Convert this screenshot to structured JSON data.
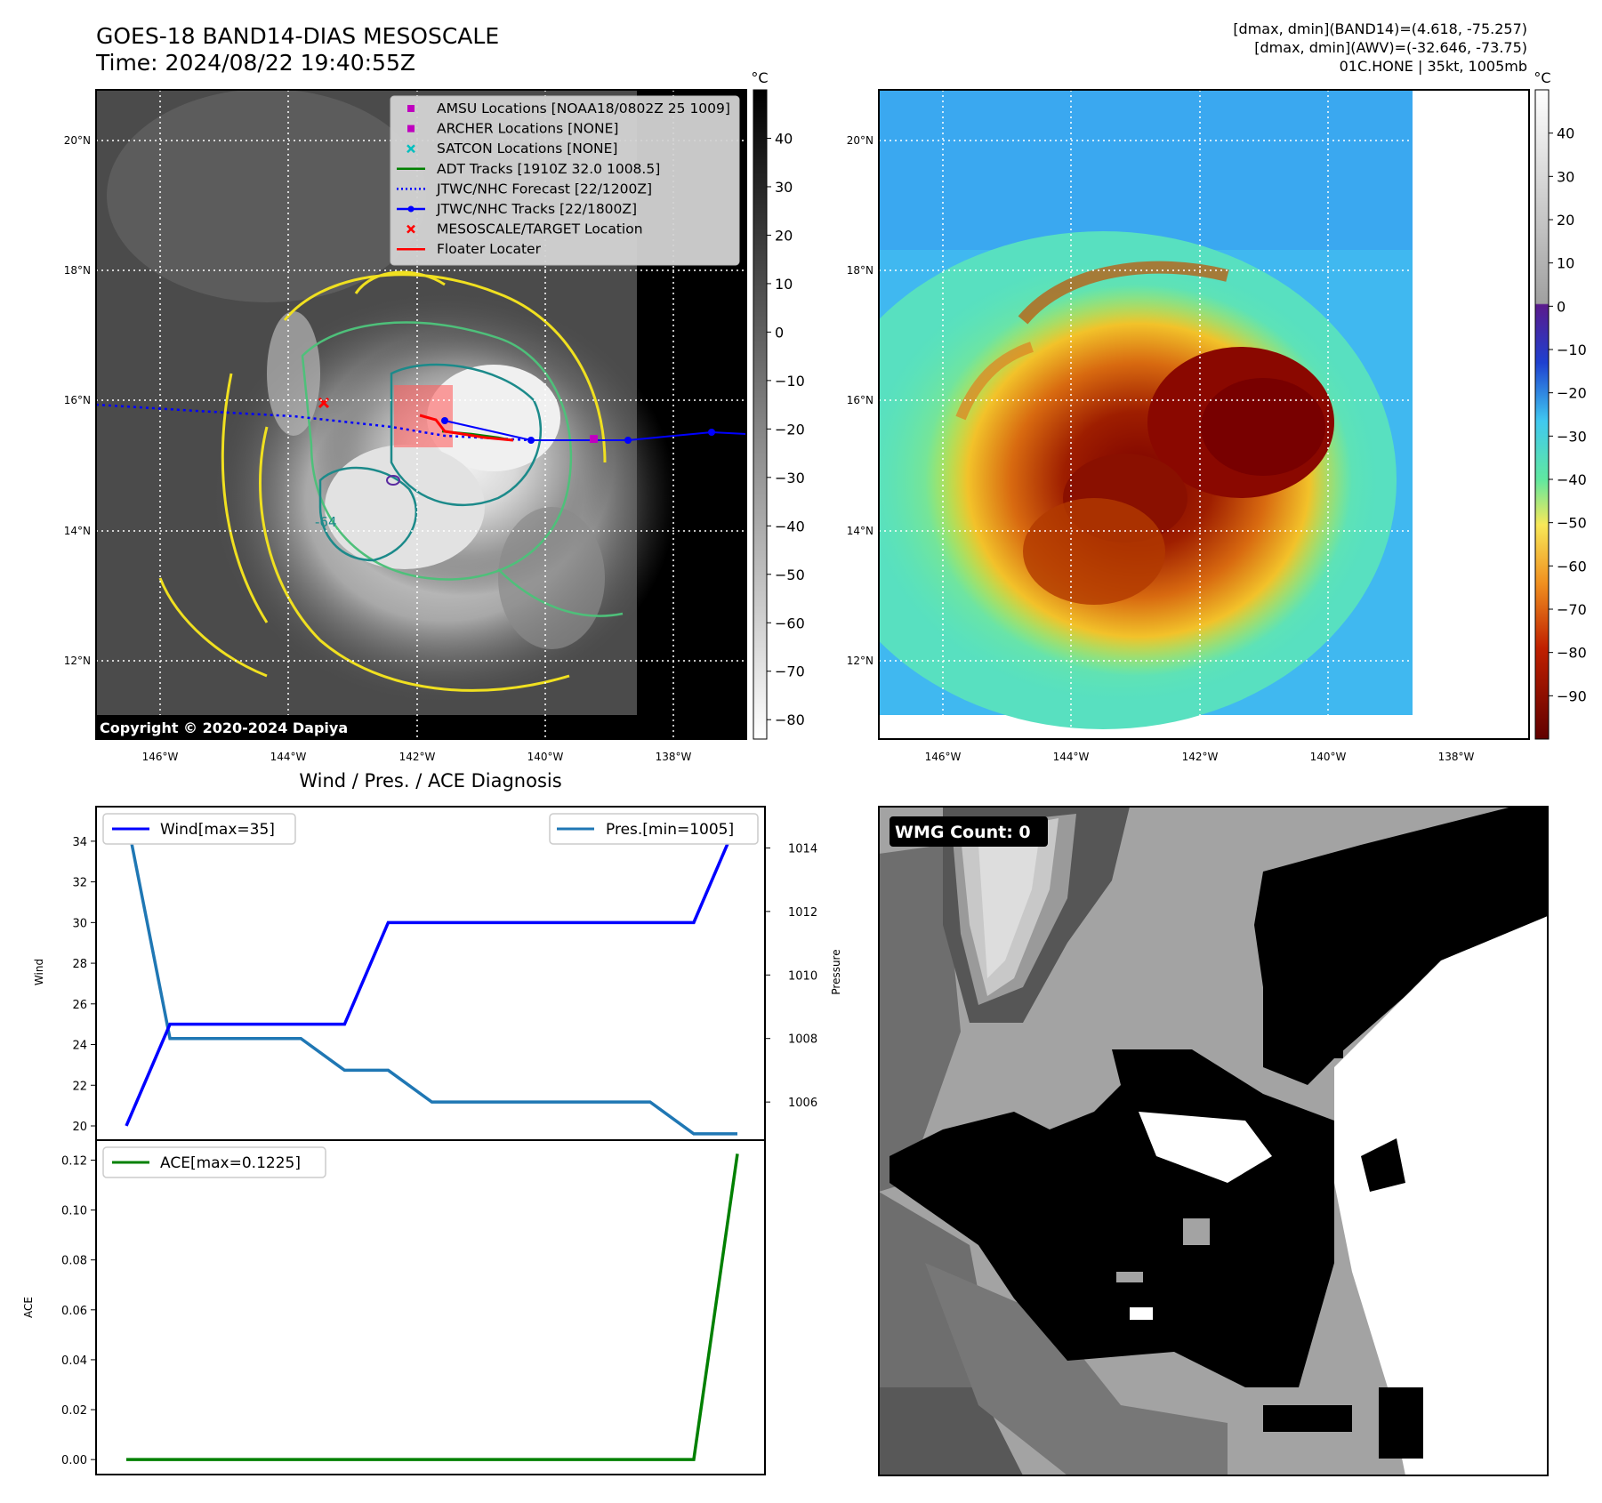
{
  "header": {
    "title_line1": "GOES-18 BAND14-DIAS MESOSCALE",
    "title_line2": "Time: 2024/08/22 19:40:55Z",
    "stats_line1": "[dmax, dmin](BAND14)=(4.618, -75.257)",
    "stats_line2": "[dmax, dmin](AWV)=(-32.646, -73.75)",
    "stats_line3": "01C.HONE | 35kt, 1005mb"
  },
  "maps": {
    "lon_ticks": [
      "146°W",
      "144°W",
      "142°W",
      "140°W",
      "138°W"
    ],
    "lat_ticks": [
      "20°N",
      "18°N",
      "16°N",
      "14°N",
      "12°N"
    ],
    "colorbar_unit": "°C",
    "ir_colorbar_ticks": [
      "40",
      "30",
      "20",
      "10",
      "0",
      "−10",
      "−20",
      "−30",
      "−40",
      "−50",
      "−60",
      "−70",
      "−80"
    ],
    "awv_colorbar_ticks": [
      "40",
      "30",
      "20",
      "10",
      "0",
      "−10",
      "−20",
      "−30",
      "−40",
      "−50",
      "−60",
      "−70",
      "−80",
      "−90"
    ],
    "copyright": "Copyright © 2020-2024 Dapiya",
    "contour_label": "-64",
    "legend": [
      {
        "label": "AMSU Locations [NOAA18/0802Z 25 1009]",
        "marker": "square",
        "color": "#bf00bf"
      },
      {
        "label": "ARCHER Locations [NONE]",
        "marker": "square",
        "color": "#bf00bf"
      },
      {
        "label": "SATCON Locations [NONE]",
        "marker": "x",
        "color": "#00bfbf"
      },
      {
        "label": "ADT Tracks [1910Z 32.0 1008.5]",
        "marker": "line",
        "color": "#008000"
      },
      {
        "label": "JTWC/NHC Forecast [22/1200Z]",
        "marker": "dotted",
        "color": "#0000ff"
      },
      {
        "label": "JTWC/NHC Tracks [22/1800Z]",
        "marker": "line-dot",
        "color": "#0000ff"
      },
      {
        "label": "MESOSCALE/TARGET Location",
        "marker": "x",
        "color": "#ff0000"
      },
      {
        "label": "Floater Locater",
        "marker": "line",
        "color": "#ff0000"
      }
    ]
  },
  "diagnosis": {
    "title": "Wind / Pres. / ACE Diagnosis",
    "wind_legend": "Wind[max=35]",
    "pres_legend": "Pres.[min=1005]",
    "ace_legend": "ACE[max=0.1225]",
    "wind_ylabel": "Wind",
    "pres_ylabel": "Pressure",
    "ace_ylabel": "ACE"
  },
  "wmg": {
    "label": "WMG Count: 0"
  },
  "chart_data": [
    {
      "type": "line",
      "title": "Wind / Pres. / ACE Diagnosis",
      "x": [
        0,
        1,
        2,
        3,
        4,
        5,
        6,
        7,
        8,
        9,
        10,
        11,
        12,
        13,
        14
      ],
      "series": [
        {
          "name": "Wind[max=35]",
          "axis": "left",
          "color": "#0000ff",
          "values": [
            20,
            25,
            25,
            25,
            25,
            25,
            30,
            30,
            30,
            30,
            30,
            30,
            30,
            30,
            35
          ]
        },
        {
          "name": "Pres.[min=1005]",
          "axis": "right",
          "color": "#1f77b4",
          "values": [
            1015,
            1008,
            1008,
            1008,
            1008,
            1007,
            1007,
            1006,
            1006,
            1006,
            1006,
            1006,
            1006,
            1005,
            1005
          ]
        }
      ],
      "ylabel": "Wind",
      "ylim": [
        19.3,
        35.7
      ],
      "y2label": "Pressure",
      "y2lim": [
        1004.8,
        1015.3
      ],
      "yticks": [
        20,
        22,
        24,
        26,
        28,
        30,
        32,
        34
      ],
      "y2ticks": [
        1006,
        1008,
        1010,
        1012,
        1014
      ]
    },
    {
      "type": "line",
      "x": [
        0,
        1,
        2,
        3,
        4,
        5,
        6,
        7,
        8,
        9,
        10,
        11,
        12,
        13,
        14
      ],
      "series": [
        {
          "name": "ACE[max=0.1225]",
          "color": "#008000",
          "values": [
            0,
            0,
            0,
            0,
            0,
            0,
            0,
            0,
            0,
            0,
            0,
            0,
            0,
            0,
            0.1225
          ]
        }
      ],
      "ylabel": "ACE",
      "ylim": [
        -0.006,
        0.128
      ],
      "yticks": [
        "0.00",
        "0.02",
        "0.04",
        "0.06",
        "0.08",
        "0.10",
        "0.12"
      ]
    }
  ]
}
